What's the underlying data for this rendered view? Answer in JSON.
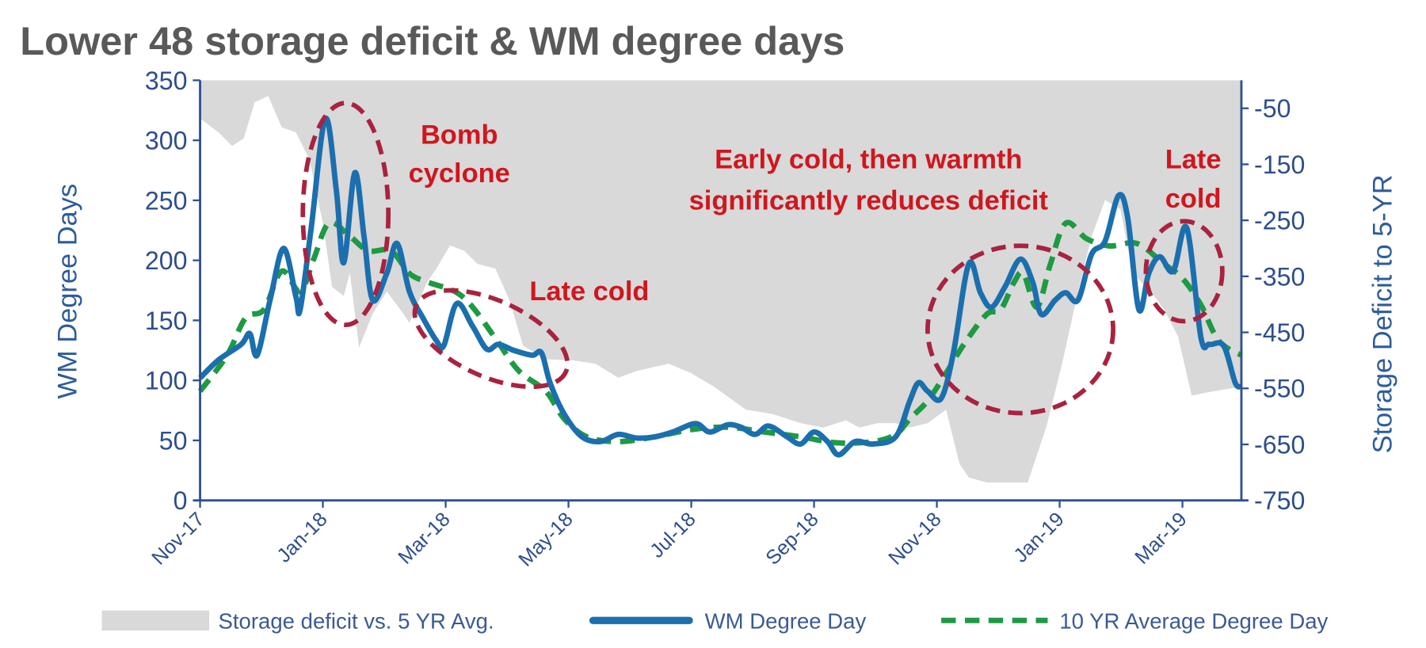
{
  "chart_data": {
    "type": "line",
    "title": "Lower 48 storage deficit & WM degree days",
    "x_unit": "months since Nov-17",
    "x_ticks": [
      {
        "x": 0,
        "label": "Nov-17"
      },
      {
        "x": 2,
        "label": "Jan-18"
      },
      {
        "x": 4,
        "label": "Mar-18"
      },
      {
        "x": 6,
        "label": "May-18"
      },
      {
        "x": 8,
        "label": "Jul-18"
      },
      {
        "x": 10,
        "label": "Sep-18"
      },
      {
        "x": 12,
        "label": "Nov-18"
      },
      {
        "x": 14,
        "label": "Jan-19"
      },
      {
        "x": 16,
        "label": "Mar-19"
      }
    ],
    "xlim": [
      0,
      16.96
    ],
    "ylabel": "WM Degree Days",
    "ylim": [
      0,
      350
    ],
    "y_ticks": [
      0,
      50,
      100,
      150,
      200,
      250,
      300,
      350
    ],
    "y2label": "Storage Deficit to 5-YR",
    "y2lim": [
      -750,
      0
    ],
    "y2_ticks": [
      -750,
      -650,
      -550,
      -450,
      -350,
      -250,
      -150,
      -50
    ],
    "grid": false,
    "legend_position": "bottom",
    "series": [
      {
        "name": "Storage deficit vs. 5 YR Avg.",
        "kind": "area",
        "axis": "right",
        "color": "#D9D9D9",
        "x": [
          0,
          0.3,
          0.52,
          0.71,
          0.89,
          1.11,
          1.33,
          1.56,
          1.78,
          2.0,
          2.15,
          2.34,
          2.44,
          2.59,
          2.81,
          3.04,
          3.26,
          3.41,
          3.7,
          3.85,
          4.07,
          4.3,
          4.52,
          4.81,
          5.04,
          5.26,
          5.63,
          6.07,
          6.44,
          6.81,
          7.11,
          7.63,
          8.0,
          8.37,
          8.89,
          9.33,
          9.78,
          10.15,
          10.52,
          10.74,
          11.04,
          11.33,
          11.56,
          11.85,
          12.15,
          12.37,
          12.52,
          12.81,
          13.19,
          13.48,
          13.78,
          14.04,
          14.3,
          14.52,
          14.74,
          14.99,
          15.19,
          15.48,
          15.7,
          15.93,
          16.15,
          16.37,
          16.67,
          16.96
        ],
        "values": [
          -68,
          -93,
          -117,
          -104,
          -39,
          -28,
          -84,
          -93,
          -141,
          -255,
          -369,
          -385,
          -344,
          -477,
          -417,
          -377,
          -409,
          -433,
          -360,
          -336,
          -295,
          -304,
          -328,
          -336,
          -393,
          -474,
          -498,
          -500,
          -506,
          -531,
          -519,
          -506,
          -523,
          -547,
          -588,
          -596,
          -612,
          -620,
          -607,
          -620,
          -612,
          -612,
          -620,
          -612,
          -588,
          -685,
          -709,
          -718,
          -718,
          -718,
          -620,
          -506,
          -377,
          -279,
          -214,
          -230,
          -344,
          -377,
          -409,
          -458,
          -563,
          -558,
          -552,
          -547
        ]
      },
      {
        "name": "WM Degree Day",
        "kind": "line",
        "axis": "left",
        "color": "#1B6FAE",
        "x": [
          0,
          0.3,
          0.67,
          0.81,
          0.93,
          1.14,
          1.36,
          1.56,
          1.63,
          1.81,
          2.04,
          2.22,
          2.34,
          2.52,
          2.67,
          2.81,
          3.04,
          3.21,
          3.41,
          3.63,
          3.85,
          3.97,
          4.18,
          4.44,
          4.67,
          4.86,
          5.11,
          5.41,
          5.56,
          5.7,
          5.93,
          6.22,
          6.52,
          6.81,
          7.11,
          7.41,
          7.7,
          8.07,
          8.3,
          8.59,
          8.81,
          9.04,
          9.26,
          9.56,
          9.78,
          10.0,
          10.22,
          10.4,
          10.67,
          10.96,
          11.33,
          11.56,
          11.7,
          11.85,
          12.07,
          12.27,
          12.52,
          12.71,
          12.89,
          13.11,
          13.36,
          13.56,
          13.7,
          13.93,
          14.1,
          14.3,
          14.52,
          14.74,
          14.96,
          15.11,
          15.29,
          15.45,
          15.63,
          15.85,
          16.07,
          16.3,
          16.44,
          16.67,
          16.86,
          16.96
        ],
        "values": [
          102,
          117,
          130,
          139,
          121,
          167,
          210,
          170,
          159,
          227,
          318,
          258,
          198,
          273,
          220,
          167,
          189,
          214,
          174,
          152,
          133,
          129,
          164,
          145,
          126,
          130,
          125,
          121,
          123,
          98,
          72,
          53,
          49,
          55,
          52,
          53,
          57,
          64,
          57,
          63,
          61,
          55,
          62,
          53,
          47,
          57,
          49,
          38,
          49,
          47,
          53,
          83,
          98,
          91,
          85,
          123,
          197,
          173,
          161,
          178,
          201,
          182,
          155,
          167,
          173,
          167,
          205,
          216,
          254,
          235,
          159,
          189,
          203,
          191,
          227,
          136,
          130,
          129,
          98,
          95
        ]
      },
      {
        "name": "10 YR Average Degree Day",
        "kind": "dashed-line",
        "axis": "left",
        "color": "#1E9A42",
        "x": [
          0,
          0.44,
          0.74,
          1.04,
          1.33,
          1.63,
          1.85,
          2.1,
          2.44,
          2.74,
          3.11,
          3.41,
          3.7,
          4.15,
          4.44,
          4.81,
          5.19,
          5.63,
          5.93,
          6.3,
          6.81,
          7.41,
          8.0,
          8.59,
          9.19,
          9.78,
          10.37,
          10.96,
          11.33,
          11.56,
          11.85,
          12.15,
          12.44,
          12.81,
          13.04,
          13.26,
          13.41,
          13.63,
          13.85,
          14.1,
          14.44,
          14.81,
          15.26,
          15.7,
          16.0,
          16.3,
          16.59,
          16.96
        ],
        "values": [
          91,
          121,
          152,
          159,
          191,
          174,
          201,
          231,
          220,
          208,
          208,
          189,
          182,
          174,
          161,
          135,
          108,
          91,
          68,
          53,
          49,
          53,
          59,
          61,
          57,
          53,
          48,
          49,
          55,
          68,
          83,
          106,
          130,
          155,
          159,
          182,
          189,
          161,
          197,
          231,
          218,
          212,
          214,
          197,
          185,
          163,
          133,
          121
        ]
      }
    ],
    "annotations": [
      {
        "id": "bomb",
        "lines": [
          "Bomb",
          "cyclone"
        ]
      },
      {
        "id": "late-cold-2018",
        "lines": [
          "Late cold"
        ]
      },
      {
        "id": "early-cold",
        "lines": [
          "Early cold, then warmth",
          "significantly reduces deficit"
        ]
      },
      {
        "id": "late-cold-2019",
        "lines": [
          "Late",
          "cold"
        ]
      }
    ],
    "colors": {
      "axis": "#2E4E8C",
      "annotation_text": "#D0161E",
      "annotation_ellipse": "#A8233F"
    }
  }
}
